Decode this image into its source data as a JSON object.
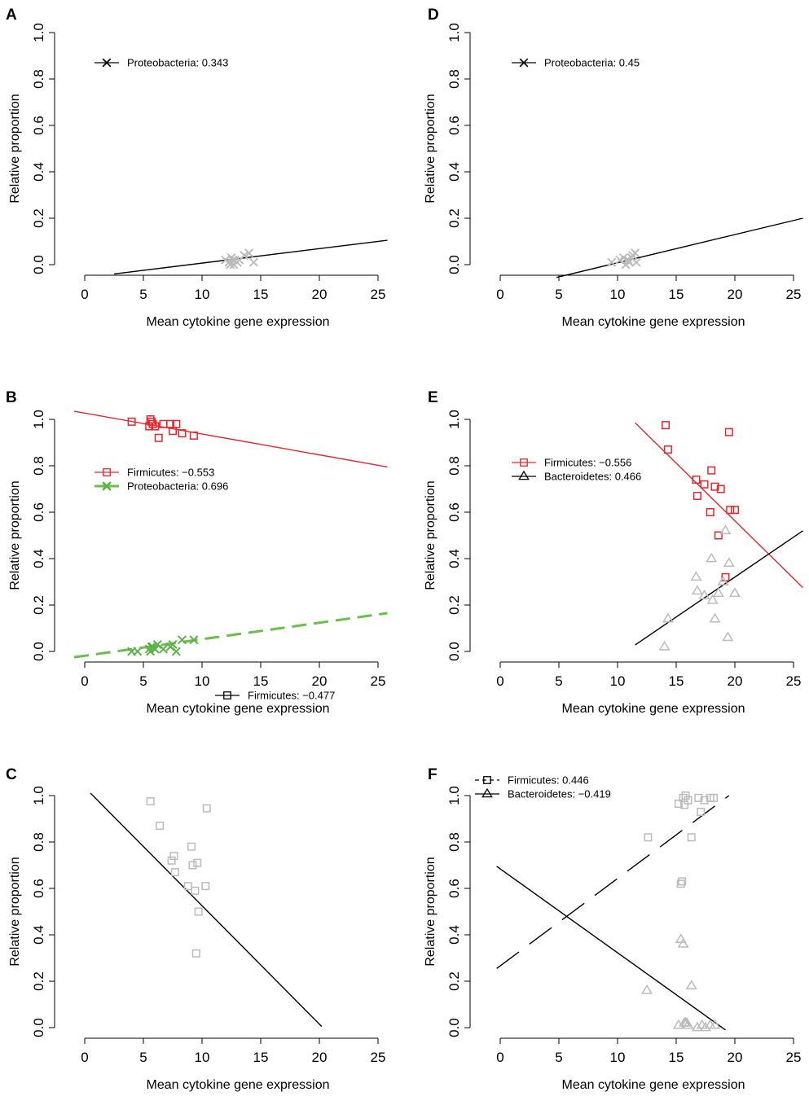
{
  "chart_data": [
    {
      "panel": "A",
      "type": "scatter",
      "xlabel": "Mean cytokine gene expression",
      "ylabel": "Relative proportion",
      "xlim": [
        0,
        25
      ],
      "ylim": [
        0,
        1
      ],
      "xticks": [
        "0",
        "5",
        "10",
        "15",
        "20",
        "25"
      ],
      "yticks": [
        "0.0",
        "0.2",
        "0.4",
        "0.6",
        "0.8",
        "1.0"
      ],
      "legend_position": "top-left",
      "series": [
        {
          "name": "Proteobacteria",
          "stat": "0.343",
          "marker": "x",
          "point_color": "#bbbbbb",
          "line_color": "#000000",
          "line_style": "solid",
          "points": [
            [
              12,
              0.02
            ],
            [
              12.3,
              0.01
            ],
            [
              12.5,
              0.03
            ],
            [
              12.7,
              0.0
            ],
            [
              12.8,
              0.02
            ],
            [
              13.0,
              0.01
            ],
            [
              12.4,
              0.0
            ],
            [
              13.2,
              0.02
            ],
            [
              13.6,
              0.04
            ],
            [
              14.0,
              0.05
            ],
            [
              14.4,
              0.01
            ],
            [
              12.6,
              0.02
            ]
          ],
          "fit": {
            "x": [
              2.5,
              25.8
            ],
            "y": [
              -0.04,
              0.105
            ]
          }
        }
      ]
    },
    {
      "panel": "B",
      "type": "scatter",
      "xlabel": "Mean cytokine gene expression",
      "ylabel": "Relative proportion",
      "xlim": [
        0,
        25
      ],
      "ylim": [
        0,
        1
      ],
      "xticks": [
        "0",
        "5",
        "10",
        "15",
        "20",
        "25"
      ],
      "yticks": [
        "0.0",
        "0.2",
        "0.4",
        "0.6",
        "0.8",
        "1.0"
      ],
      "legend_position": "middle-left",
      "series": [
        {
          "name": "Firmicutes",
          "stat": "−0.553",
          "marker": "square",
          "point_color": "#e8262b",
          "line_color": "#e8262b",
          "line_style": "solid",
          "points": [
            [
              4.0,
              0.99
            ],
            [
              5.5,
              0.97
            ],
            [
              5.6,
              1.0
            ],
            [
              5.8,
              0.98
            ],
            [
              6.0,
              0.97
            ],
            [
              6.3,
              0.92
            ],
            [
              6.7,
              0.98
            ],
            [
              7.3,
              0.98
            ],
            [
              7.5,
              0.95
            ],
            [
              7.8,
              0.98
            ],
            [
              8.3,
              0.94
            ],
            [
              9.3,
              0.93
            ],
            [
              5.7,
              0.99
            ]
          ],
          "fit": {
            "x": [
              -0.9,
              25.8
            ],
            "y": [
              1.035,
              0.795
            ]
          }
        },
        {
          "name": "Proteobacteria",
          "stat": "0.696",
          "marker": "x",
          "point_color": "#5cb247",
          "line_color": "#6abf4b",
          "line_style": "dashed",
          "points": [
            [
              4.0,
              0.0
            ],
            [
              4.5,
              0.0
            ],
            [
              5.5,
              0.01
            ],
            [
              5.6,
              0.0
            ],
            [
              5.8,
              0.02
            ],
            [
              6.0,
              0.01
            ],
            [
              6.2,
              0.03
            ],
            [
              6.7,
              0.01
            ],
            [
              7.3,
              0.02
            ],
            [
              7.5,
              0.03
            ],
            [
              7.8,
              0.0
            ],
            [
              8.3,
              0.05
            ],
            [
              9.3,
              0.05
            ],
            [
              5.7,
              0.02
            ]
          ],
          "fit": {
            "x": [
              -0.9,
              25.8
            ],
            "y": [
              -0.025,
              0.165
            ]
          }
        }
      ]
    },
    {
      "panel": "C",
      "type": "scatter",
      "xlabel": "Mean cytokine gene expression",
      "ylabel": "Relative proportion",
      "xlim": [
        0,
        25
      ],
      "ylim": [
        0,
        1
      ],
      "xticks": [
        "0",
        "5",
        "10",
        "15",
        "20",
        "25"
      ],
      "yticks": [
        "0.0",
        "0.2",
        "0.4",
        "0.6",
        "0.8",
        "1.0"
      ],
      "legend_position": "middle-right",
      "series": [
        {
          "name": "Firmicutes",
          "stat": "−0.477",
          "marker": "square",
          "point_color": "#bbbbbb",
          "line_color": "#000000",
          "line_style": "solid",
          "points": [
            [
              5.6,
              0.975
            ],
            [
              6.4,
              0.87
            ],
            [
              7.4,
              0.72
            ],
            [
              7.6,
              0.74
            ],
            [
              7.7,
              0.67
            ],
            [
              8.8,
              0.61
            ],
            [
              9.1,
              0.78
            ],
            [
              9.2,
              0.7
            ],
            [
              9.4,
              0.59
            ],
            [
              9.6,
              0.71
            ],
            [
              9.7,
              0.5
            ],
            [
              10.3,
              0.61
            ],
            [
              10.4,
              0.945
            ],
            [
              9.5,
              0.32
            ]
          ],
          "fit": {
            "x": [
              0.5,
              20.2
            ],
            "y": [
              1.01,
              0.005
            ]
          }
        }
      ]
    },
    {
      "panel": "D",
      "type": "scatter",
      "xlabel": "Mean cytokine gene expression",
      "ylabel": "Relative proportion",
      "xlim": [
        0,
        25
      ],
      "ylim": [
        0,
        1
      ],
      "xticks": [
        "0",
        "5",
        "10",
        "15",
        "20",
        "25"
      ],
      "yticks": [
        "0.0",
        "0.2",
        "0.4",
        "0.6",
        "0.8",
        "1.0"
      ],
      "legend_position": "top-left",
      "series": [
        {
          "name": "Proteobacteria",
          "stat": "0.45",
          "marker": "x",
          "point_color": "#bbbbbb",
          "line_color": "#000000",
          "line_style": "solid",
          "points": [
            [
              9.5,
              0.01
            ],
            [
              10.2,
              0.02
            ],
            [
              10.5,
              0.03
            ],
            [
              10.7,
              0.0
            ],
            [
              10.8,
              0.02
            ],
            [
              11.0,
              0.01
            ],
            [
              11.2,
              0.03
            ],
            [
              11.3,
              0.04
            ],
            [
              11.5,
              0.05
            ],
            [
              11.6,
              0.01
            ],
            [
              10.9,
              0.02
            ]
          ],
          "fit": {
            "x": [
              4.8,
              25.8
            ],
            "y": [
              -0.055,
              0.2
            ]
          }
        }
      ]
    },
    {
      "panel": "E",
      "type": "scatter",
      "xlabel": "Mean cytokine gene expression",
      "ylabel": "Relative proportion",
      "xlim": [
        0,
        25
      ],
      "ylim": [
        0,
        1
      ],
      "xticks": [
        "0",
        "5",
        "10",
        "15",
        "20",
        "25"
      ],
      "yticks": [
        "0.0",
        "0.2",
        "0.4",
        "0.6",
        "0.8",
        "1.0"
      ],
      "legend_position": "top-left",
      "series": [
        {
          "name": "Firmicutes",
          "stat": "−0.556",
          "marker": "square",
          "point_color": "#e8262b",
          "line_color": "#e8262b",
          "line_style": "solid",
          "points": [
            [
              14.1,
              0.975
            ],
            [
              14.3,
              0.87
            ],
            [
              16.7,
              0.74
            ],
            [
              16.8,
              0.67
            ],
            [
              17.4,
              0.72
            ],
            [
              18.0,
              0.78
            ],
            [
              17.9,
              0.6
            ],
            [
              18.3,
              0.71
            ],
            [
              18.8,
              0.7
            ],
            [
              18.6,
              0.5
            ],
            [
              19.6,
              0.61
            ],
            [
              20.0,
              0.61
            ],
            [
              19.5,
              0.945
            ],
            [
              19.2,
              0.32
            ]
          ],
          "fit": {
            "x": [
              11.5,
              25.8
            ],
            "y": [
              0.985,
              0.275
            ]
          }
        },
        {
          "name": "Bacteroidetes",
          "stat": "0.466",
          "marker": "triangle",
          "point_color": "#bbbbbb",
          "line_color": "#000000",
          "line_style": "solid",
          "points": [
            [
              14.0,
              0.02
            ],
            [
              14.3,
              0.14
            ],
            [
              16.7,
              0.32
            ],
            [
              16.8,
              0.26
            ],
            [
              17.4,
              0.24
            ],
            [
              18.0,
              0.4
            ],
            [
              18.1,
              0.22
            ],
            [
              18.3,
              0.14
            ],
            [
              18.6,
              0.25
            ],
            [
              19.0,
              0.3
            ],
            [
              19.2,
              0.52
            ],
            [
              19.5,
              0.38
            ],
            [
              19.4,
              0.06
            ],
            [
              20.0,
              0.25
            ]
          ],
          "fit": {
            "x": [
              11.5,
              25.8
            ],
            "y": [
              0.028,
              0.52
            ]
          }
        }
      ]
    },
    {
      "panel": "F",
      "type": "scatter",
      "xlabel": "Mean cytokine gene expression",
      "ylabel": "Relative proportion",
      "xlim": [
        0,
        25
      ],
      "ylim": [
        0,
        1
      ],
      "xticks": [
        "0",
        "5",
        "10",
        "15",
        "20",
        "25"
      ],
      "yticks": [
        "0.0",
        "0.2",
        "0.4",
        "0.6",
        "0.8",
        "1.0"
      ],
      "legend_position": "top-left",
      "series": [
        {
          "name": "Firmicutes",
          "stat": "0.446",
          "marker": "square",
          "point_color": "#bbbbbb",
          "line_color": "#000000",
          "line_style": "longdash",
          "points": [
            [
              12.6,
              0.82
            ],
            [
              15.2,
              0.965
            ],
            [
              15.4,
              0.62
            ],
            [
              15.5,
              0.63
            ],
            [
              15.7,
              0.96
            ],
            [
              15.8,
              1.0
            ],
            [
              16.0,
              0.98
            ],
            [
              16.3,
              0.82
            ],
            [
              16.9,
              0.99
            ],
            [
              17.1,
              0.93
            ],
            [
              17.4,
              0.98
            ],
            [
              17.9,
              0.99
            ],
            [
              18.2,
              0.99
            ],
            [
              15.6,
              0.99
            ]
          ],
          "fit": {
            "x": [
              -0.3,
              19.5
            ],
            "y": [
              0.255,
              1.0
            ]
          }
        },
        {
          "name": "Bacteroidetes",
          "stat": "−0.419",
          "marker": "triangle",
          "point_color": "#bbbbbb",
          "line_color": "#000000",
          "line_style": "solid",
          "points": [
            [
              12.5,
              0.16
            ],
            [
              15.2,
              0.01
            ],
            [
              15.4,
              0.38
            ],
            [
              15.6,
              0.36
            ],
            [
              15.7,
              0.02
            ],
            [
              15.8,
              0.02
            ],
            [
              16.0,
              0.01
            ],
            [
              16.3,
              0.18
            ],
            [
              16.8,
              0.0
            ],
            [
              17.2,
              0.01
            ],
            [
              17.5,
              0.0
            ],
            [
              17.9,
              0.01
            ],
            [
              18.3,
              0.01
            ],
            [
              15.9,
              0.02
            ]
          ],
          "fit": {
            "x": [
              -0.3,
              19.2
            ],
            "y": [
              0.695,
              -0.01
            ]
          }
        }
      ]
    }
  ]
}
